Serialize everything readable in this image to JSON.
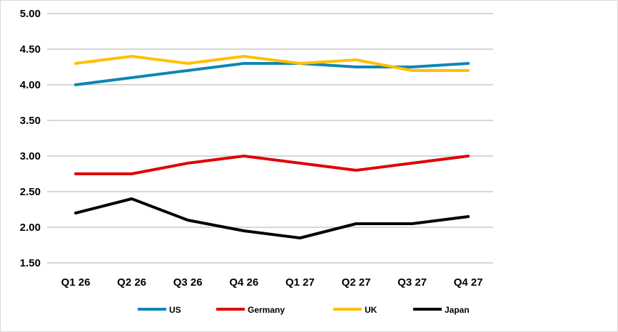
{
  "chart_data": {
    "type": "line",
    "title": "",
    "xlabel": "",
    "ylabel": "",
    "categories": [
      "Q1 26",
      "Q2 26",
      "Q3 26",
      "Q4 26",
      "Q1 27",
      "Q2 27",
      "Q3 27",
      "Q4 27"
    ],
    "ylim": [
      1.5,
      5.0
    ],
    "yticks": [
      "1.50",
      "2.00",
      "2.50",
      "3.00",
      "3.50",
      "4.00",
      "4.50",
      "5.00"
    ],
    "grid": true,
    "legend": "bottom",
    "series": [
      {
        "name": "US",
        "color": "#0e86b4",
        "values": [
          4.0,
          4.1,
          4.2,
          4.3,
          4.3,
          4.25,
          4.25,
          4.3
        ]
      },
      {
        "name": "Germany",
        "color": "#e00000",
        "values": [
          2.75,
          2.75,
          2.9,
          3.0,
          2.9,
          2.8,
          2.9,
          3.0
        ]
      },
      {
        "name": "UK",
        "color": "#ffc000",
        "values": [
          4.3,
          4.4,
          4.3,
          4.4,
          4.3,
          4.35,
          4.2,
          4.2
        ]
      },
      {
        "name": "Japan",
        "color": "#000000",
        "values": [
          2.2,
          2.4,
          2.1,
          1.95,
          1.85,
          2.05,
          2.05,
          2.15
        ]
      }
    ]
  }
}
